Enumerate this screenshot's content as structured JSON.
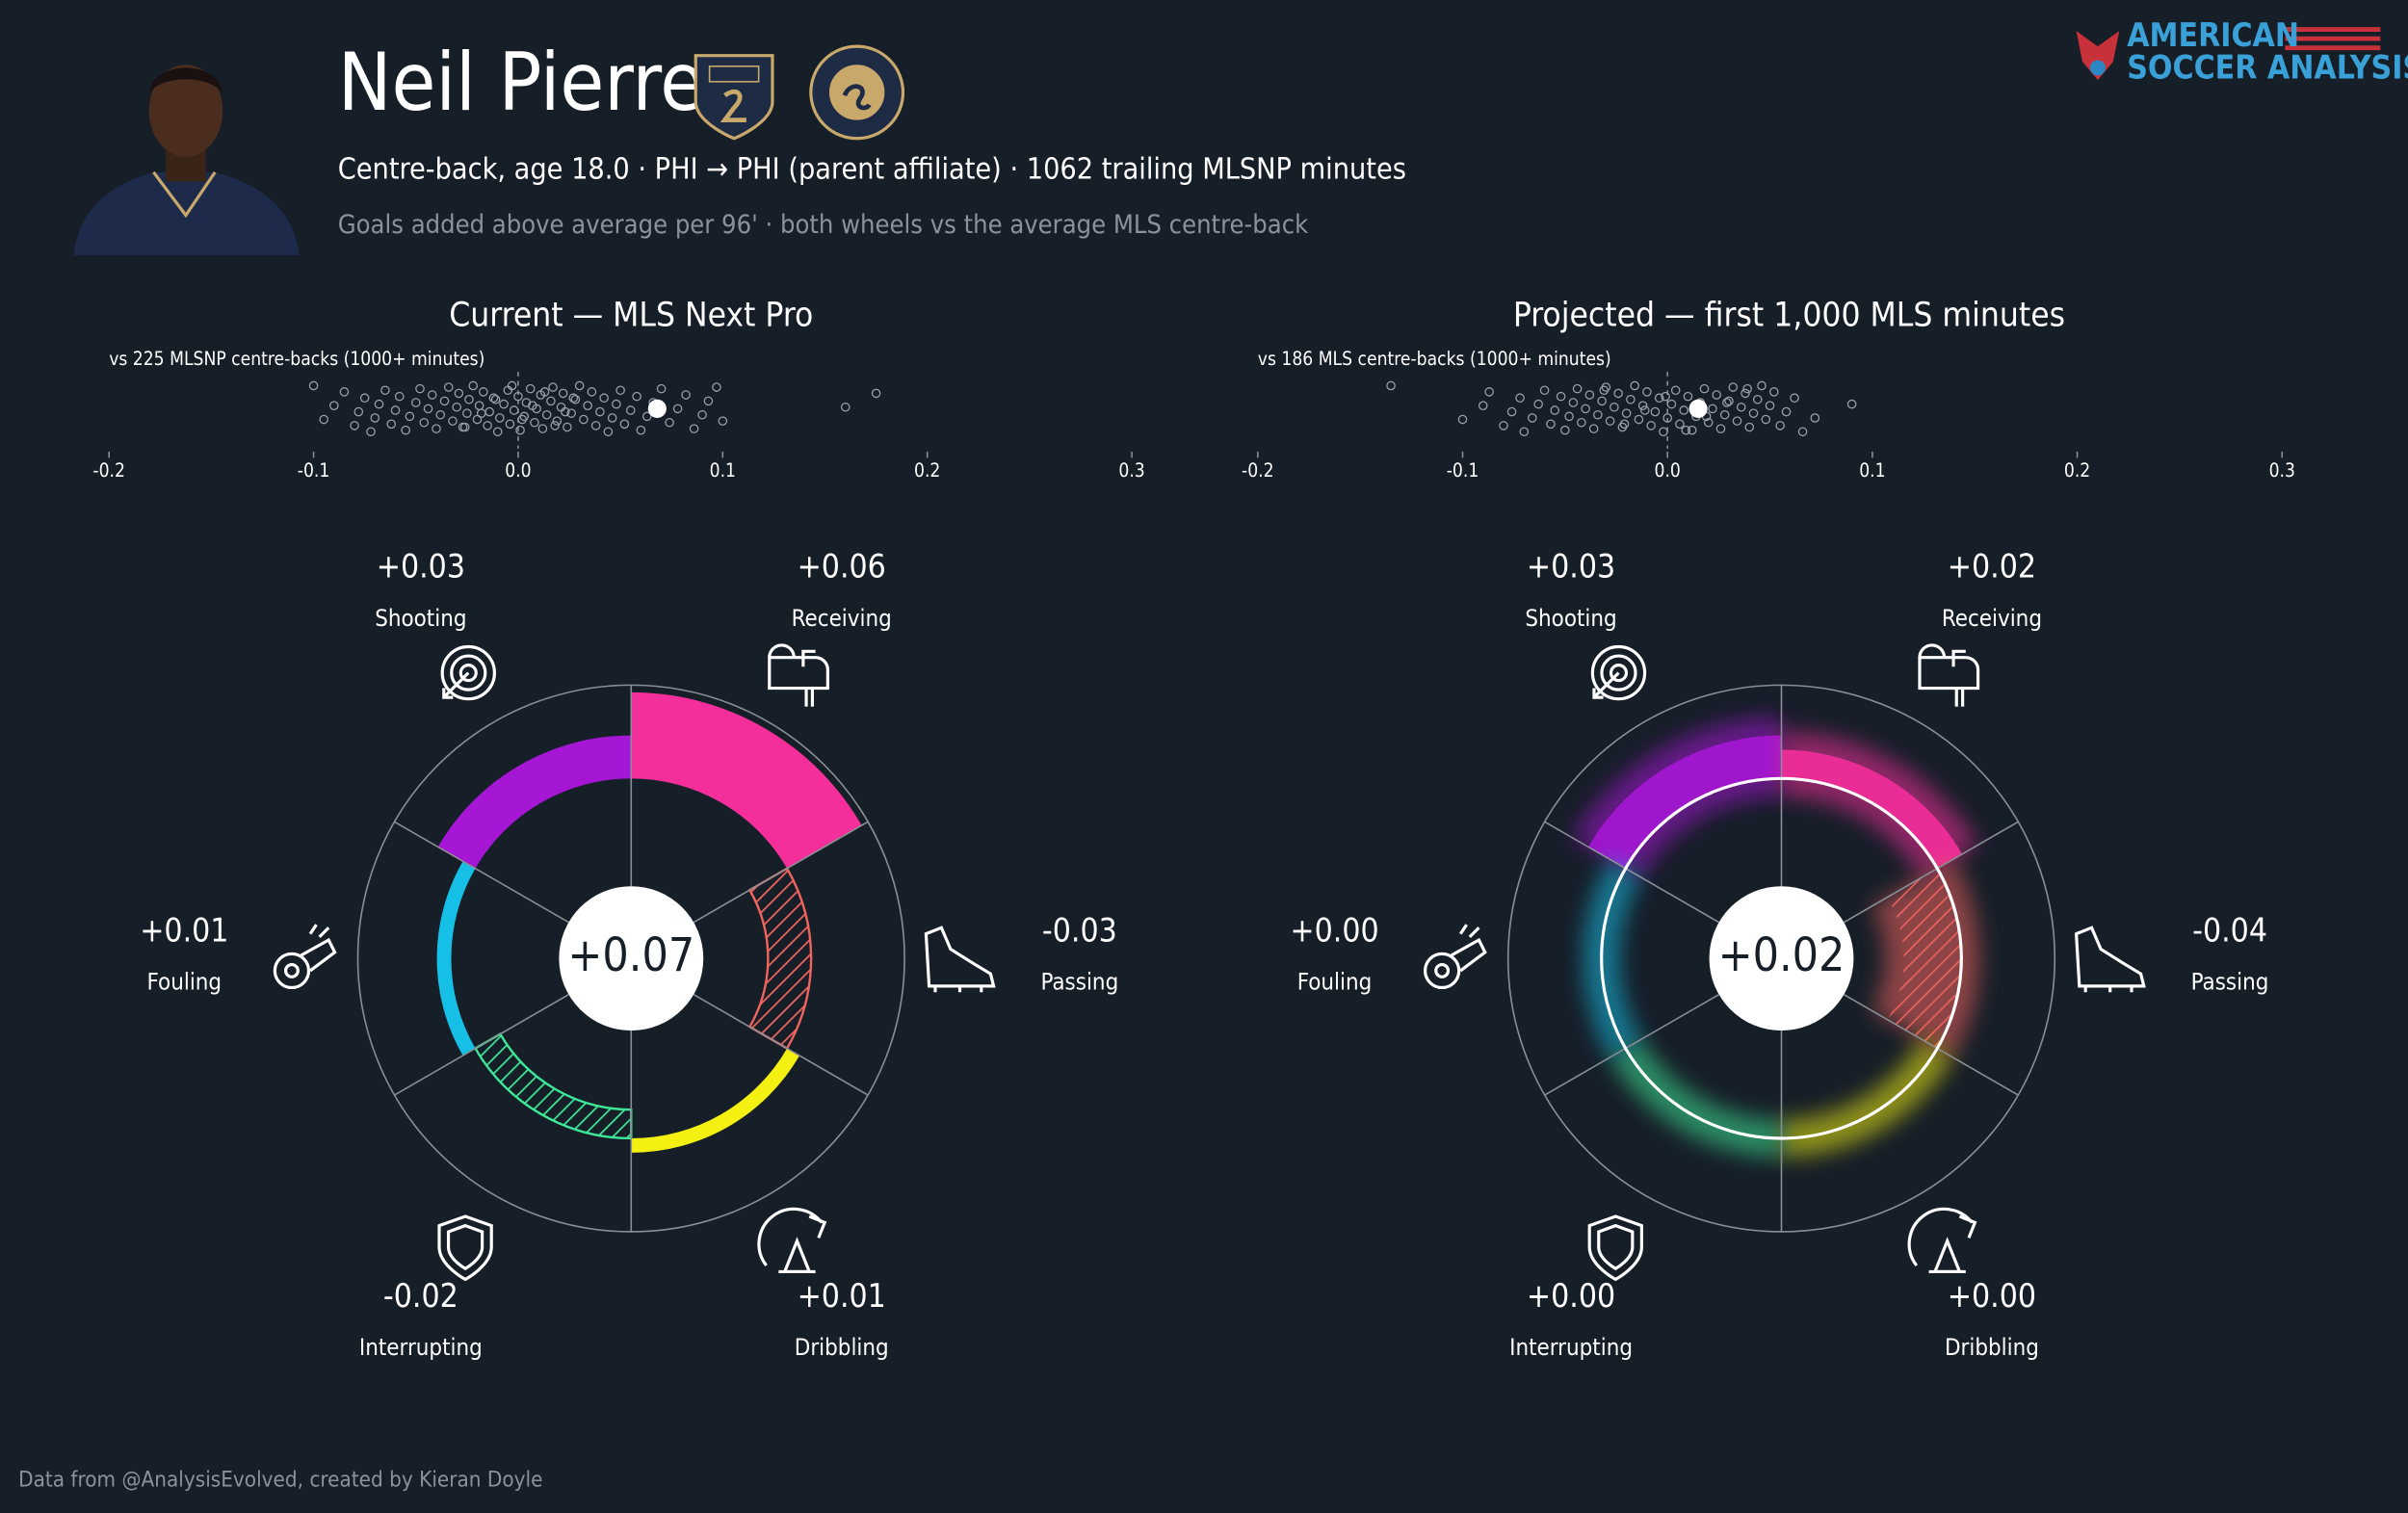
{
  "header": {
    "title": "Neil Pierre",
    "subtitle": "Centre-back, age 18.0 · PHI → PHI (parent affiliate) · 1062 trailing MLSNP minutes",
    "note": "Goals added above average per 96' · both wheels vs the average MLS centre-back"
  },
  "logo": {
    "line1": "AMERICAN",
    "line2": "SOCCER ANALYSIS"
  },
  "footer": "Data from @AnalysisEvolved, created by Kieran Doyle",
  "chart_data": [
    {
      "type": "strip",
      "title": "Current — MLS Next Pro",
      "subtitle": "vs 225 MLSNP centre-backs (1000+ minutes)",
      "xlim": [
        -0.2,
        0.3
      ],
      "xticks": [
        -0.2,
        -0.1,
        {
          "value": 0,
          "label": "0.0"
        },
        0.1,
        0.2,
        0.3
      ],
      "zero_line": true,
      "color": "#9aa0a8",
      "player_color": "#ffffff",
      "player_value": 0.068,
      "x": [
        -0.1,
        -0.095,
        -0.09,
        -0.085,
        -0.08,
        -0.078,
        -0.075,
        -0.072,
        -0.07,
        -0.068,
        -0.065,
        -0.062,
        -0.06,
        -0.058,
        -0.055,
        -0.053,
        -0.05,
        -0.048,
        -0.046,
        -0.044,
        -0.042,
        -0.04,
        -0.038,
        -0.036,
        -0.034,
        -0.032,
        -0.03,
        -0.029,
        -0.027,
        -0.025,
        -0.024,
        -0.022,
        -0.02,
        -0.019,
        -0.017,
        -0.015,
        -0.014,
        -0.012,
        -0.01,
        -0.009,
        -0.007,
        -0.005,
        -0.004,
        -0.002,
        0,
        0.001,
        0.003,
        0.004,
        0.006,
        0.008,
        0.009,
        0.011,
        0.012,
        0.014,
        0.016,
        0.017,
        0.019,
        0.021,
        0.022,
        0.024,
        0.026,
        0.028,
        0.03,
        0.032,
        0.034,
        0.036,
        0.038,
        0.04,
        0.042,
        0.044,
        0.046,
        0.048,
        0.05,
        0.052,
        0.055,
        0.058,
        0.06,
        0.063,
        0.066,
        0.07,
        0.074,
        0.078,
        0.082,
        0.086,
        0.09,
        0.093,
        0.097,
        0.1,
        0.16,
        0.175,
        -0.026,
        -0.018,
        -0.011,
        -0.003,
        0.002,
        0.007,
        0.013,
        0.018,
        0.023,
        0.027
      ]
    },
    {
      "type": "radial",
      "categories": [
        "Shooting",
        "Receiving",
        "Passing",
        "Dribbling",
        "Interrupting",
        "Fouling"
      ],
      "values": [
        0.03,
        0.06,
        -0.03,
        0.01,
        -0.02,
        0.01
      ],
      "value_labels": [
        "+0.03",
        "+0.06",
        "-0.03",
        "+0.01",
        "-0.02",
        "+0.01"
      ],
      "colors": [
        "#a517d4",
        "#f42f9b",
        "#f0645e",
        "#f4f011",
        "#3de898",
        "#16bfe6"
      ],
      "total": 0.07,
      "total_label": "+0.07",
      "rlim": [
        -0.075,
        0.065
      ],
      "glow": false
    },
    {
      "type": "strip",
      "title": "Projected — first 1,000 MLS minutes",
      "subtitle": "vs 186 MLS centre-backs (1000+ minutes)",
      "xlim": [
        -0.2,
        0.3
      ],
      "xticks": [
        -0.2,
        -0.1,
        {
          "value": 0,
          "label": "0.0"
        },
        0.1,
        0.2,
        0.3
      ],
      "zero_line": true,
      "color": "#9aa0a8",
      "player_color": "#ffffff",
      "player_value": 0.015,
      "x": [
        -0.135,
        -0.1,
        -0.09,
        -0.087,
        -0.08,
        -0.076,
        -0.072,
        -0.07,
        -0.066,
        -0.063,
        -0.06,
        -0.057,
        -0.055,
        -0.052,
        -0.05,
        -0.048,
        -0.046,
        -0.044,
        -0.042,
        -0.04,
        -0.038,
        -0.036,
        -0.034,
        -0.032,
        -0.03,
        -0.028,
        -0.026,
        -0.024,
        -0.022,
        -0.02,
        -0.018,
        -0.016,
        -0.014,
        -0.012,
        -0.01,
        -0.008,
        -0.006,
        -0.004,
        -0.002,
        0,
        0.002,
        0.004,
        0.006,
        0.008,
        0.01,
        0.012,
        0.014,
        0.016,
        0.018,
        0.02,
        0.022,
        0.024,
        0.026,
        0.028,
        0.03,
        0.032,
        0.034,
        0.036,
        0.038,
        0.04,
        0.042,
        0.044,
        0.046,
        0.048,
        0.05,
        0.052,
        0.055,
        0.058,
        0.062,
        0.066,
        0.072,
        0.09,
        -0.031,
        -0.021,
        -0.011,
        -0.001,
        0.009,
        0.019,
        0.029,
        0.039
      ]
    },
    {
      "type": "radial",
      "categories": [
        "Shooting",
        "Receiving",
        "Passing",
        "Dribbling",
        "Interrupting",
        "Fouling"
      ],
      "values": [
        0.03,
        0.02,
        -0.04,
        0,
        0,
        0
      ],
      "value_labels": [
        "+0.03",
        "+0.02",
        "-0.04",
        "+0.00",
        "+0.00",
        "+0.00"
      ],
      "colors": [
        "#a517d4",
        "#f42f9b",
        "#f0645e",
        "#f4f011",
        "#3de898",
        "#16bfe6"
      ],
      "total": 0.02,
      "total_label": "+0.02",
      "rlim": [
        -0.075,
        0.065
      ],
      "glow": true
    }
  ]
}
